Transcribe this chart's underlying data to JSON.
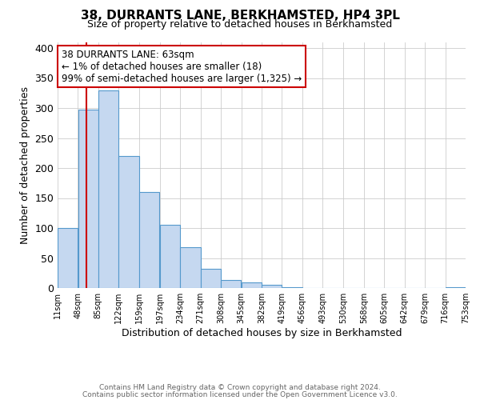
{
  "title": "38, DURRANTS LANE, BERKHAMSTED, HP4 3PL",
  "subtitle": "Size of property relative to detached houses in Berkhamsted",
  "xlabel": "Distribution of detached houses by size in Berkhamsted",
  "ylabel": "Number of detached properties",
  "bar_left_edges": [
    11,
    48,
    85,
    122,
    159,
    197,
    234,
    271,
    308,
    345,
    382,
    419,
    456,
    493,
    530,
    568,
    605,
    642,
    679,
    716
  ],
  "bar_heights": [
    100,
    298,
    330,
    220,
    160,
    105,
    68,
    32,
    14,
    10,
    5,
    1,
    0,
    0,
    0,
    0,
    0,
    0,
    0,
    2
  ],
  "bin_width": 37,
  "tick_labels": [
    "11sqm",
    "48sqm",
    "85sqm",
    "122sqm",
    "159sqm",
    "197sqm",
    "234sqm",
    "271sqm",
    "308sqm",
    "345sqm",
    "382sqm",
    "419sqm",
    "456sqm",
    "493sqm",
    "530sqm",
    "568sqm",
    "605sqm",
    "642sqm",
    "679sqm",
    "716sqm",
    "753sqm"
  ],
  "tick_positions": [
    11,
    48,
    85,
    122,
    159,
    197,
    234,
    271,
    308,
    345,
    382,
    419,
    456,
    493,
    530,
    568,
    605,
    642,
    679,
    716,
    753
  ],
  "bar_color": "#c5d8f0",
  "bar_edge_color": "#5599cc",
  "vline_x": 63,
  "vline_color": "#cc0000",
  "xlim": [
    11,
    753
  ],
  "ylim": [
    0,
    410
  ],
  "yticks": [
    0,
    50,
    100,
    150,
    200,
    250,
    300,
    350,
    400
  ],
  "annotation_title": "38 DURRANTS LANE: 63sqm",
  "annotation_line1": "← 1% of detached houses are smaller (18)",
  "annotation_line2": "99% of semi-detached houses are larger (1,325) →",
  "annotation_box_color": "#ffffff",
  "annotation_box_edge_color": "#cc0000",
  "footer1": "Contains HM Land Registry data © Crown copyright and database right 2024.",
  "footer2": "Contains public sector information licensed under the Open Government Licence v3.0.",
  "background_color": "#ffffff",
  "grid_color": "#cccccc"
}
